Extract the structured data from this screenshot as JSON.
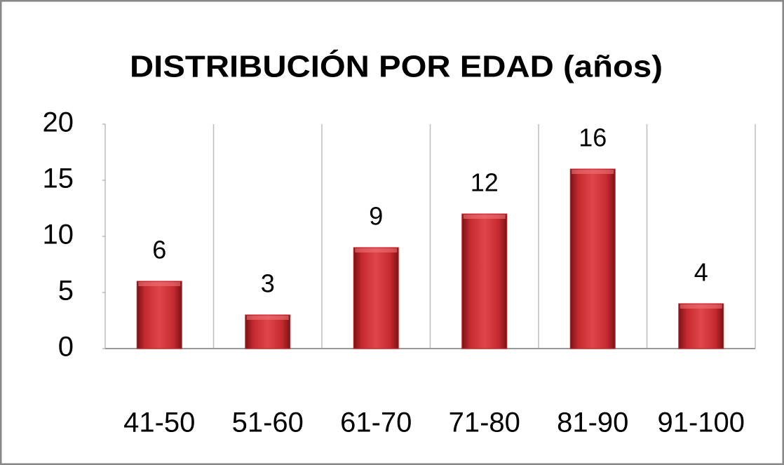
{
  "chart_data": {
    "type": "bar",
    "title": "DISTRIBUCIÓN POR EDAD (años)",
    "categories": [
      "41-50",
      "51-60",
      "61-70",
      "71-80",
      "81-90",
      "91-100"
    ],
    "values": [
      6,
      3,
      9,
      12,
      16,
      4
    ],
    "color": "#c9262c",
    "ylim": [
      0,
      20
    ],
    "yticks": [
      0,
      5,
      10,
      15,
      20
    ]
  }
}
